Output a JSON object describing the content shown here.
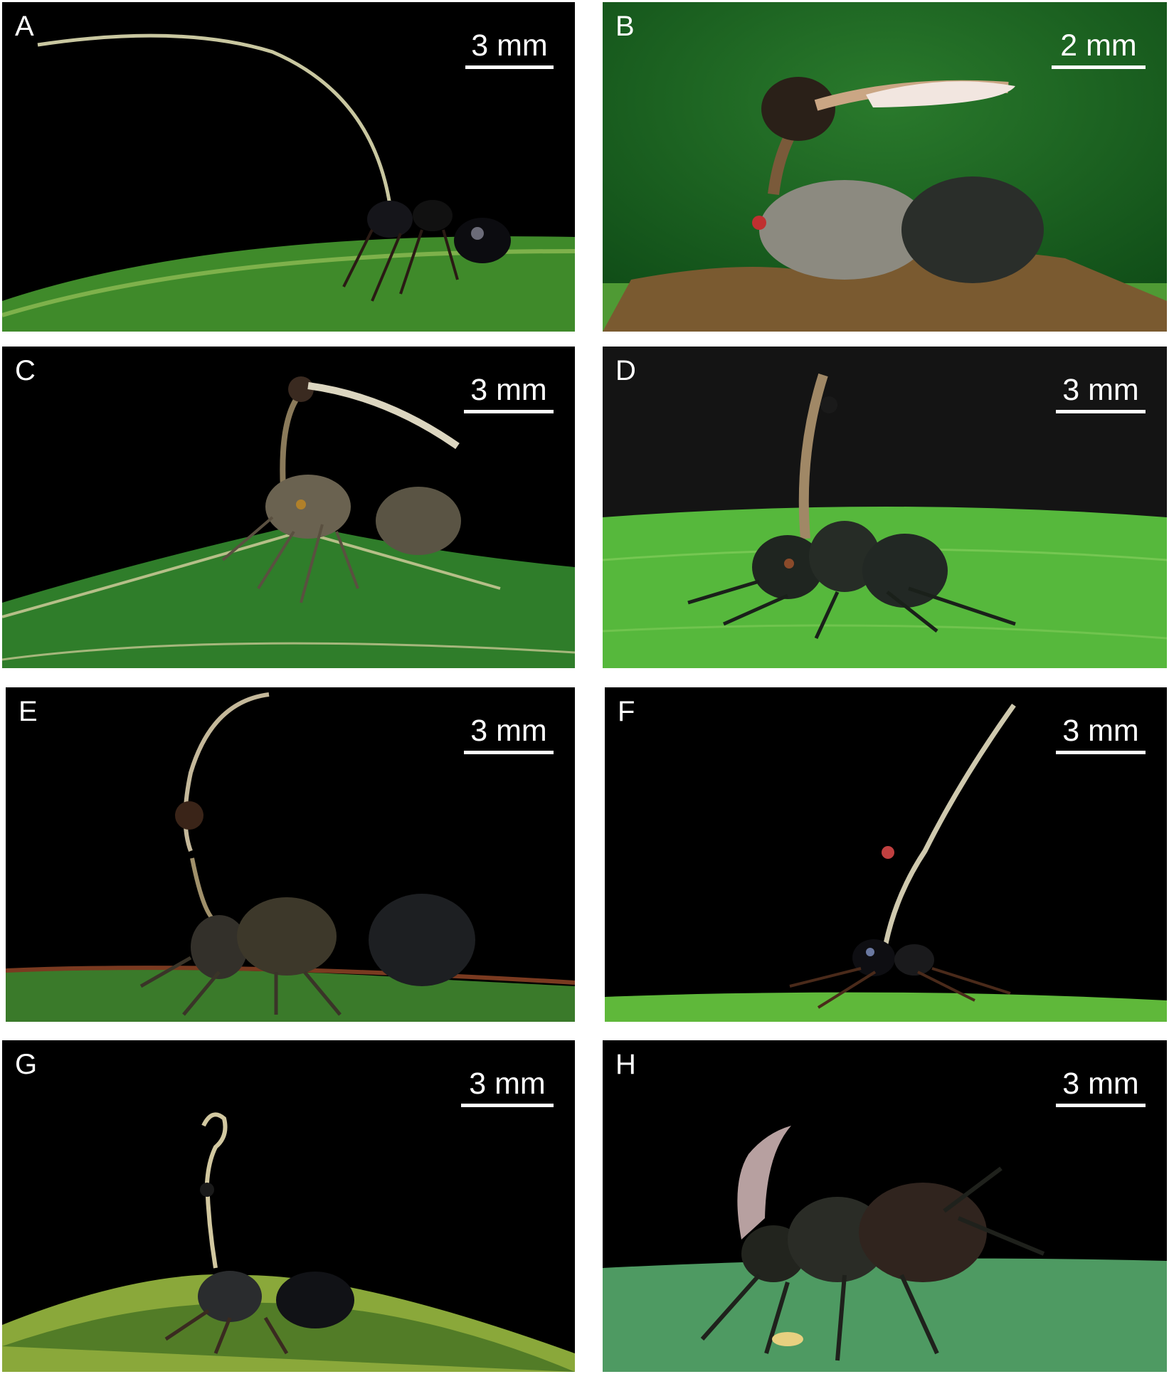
{
  "figure": {
    "panels": [
      {
        "letter": "A",
        "scale_label": "3 mm",
        "background": "#000000",
        "leaf_color": "#3f8a2a"
      },
      {
        "letter": "B",
        "scale_label": "2 mm",
        "background": "#1f6b24",
        "leaf_color": "#4f9a34"
      },
      {
        "letter": "C",
        "scale_label": "3 mm",
        "background": "#000000",
        "leaf_color": "#2f7d2a"
      },
      {
        "letter": "D",
        "scale_label": "3 mm",
        "background": "#141414",
        "leaf_color": "#56b83c"
      },
      {
        "letter": "E",
        "scale_label": "3 mm",
        "background": "#000000",
        "leaf_color": "#3a7a2a"
      },
      {
        "letter": "F",
        "scale_label": "3 mm",
        "background": "#000000",
        "leaf_color": "#5fb83a"
      },
      {
        "letter": "G",
        "scale_label": "3 mm",
        "background": "#000000",
        "leaf_color": "#8aa83a"
      },
      {
        "letter": "H",
        "scale_label": "3 mm",
        "background": "#000000",
        "leaf_color": "#4e9a62"
      }
    ]
  }
}
